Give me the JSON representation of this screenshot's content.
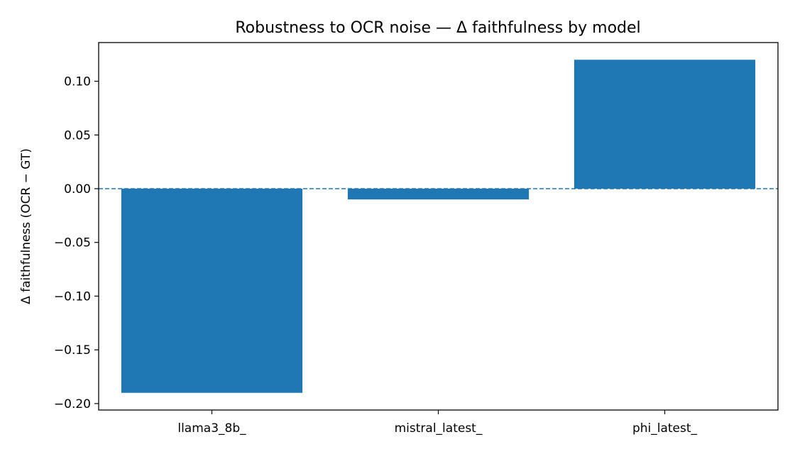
{
  "chart_data": {
    "type": "bar",
    "title": "Robustness to OCR noise — Δ faithfulness by model",
    "xlabel": "",
    "ylabel": "Δ faithfulness (OCR − GT)",
    "categories": [
      "llama3_8b_",
      "mistral_latest_",
      "phi_latest_"
    ],
    "values": [
      -0.19,
      -0.01,
      0.12
    ],
    "ylim": [
      -0.206,
      0.136
    ],
    "yticks": [
      -0.2,
      -0.15,
      -0.1,
      -0.05,
      0.0,
      0.05,
      0.1
    ],
    "ytick_labels": [
      "−0.20",
      "−0.15",
      "−0.10",
      "−0.05",
      "0.00",
      "0.05",
      "0.10"
    ],
    "reference_line": {
      "y": 0,
      "style": "dashed"
    },
    "grid": false,
    "legend": "none",
    "colors": {
      "bar": "#1f77b4",
      "reference_line": "#1f77b4",
      "axes": "#000000",
      "background": "#ffffff"
    }
  }
}
